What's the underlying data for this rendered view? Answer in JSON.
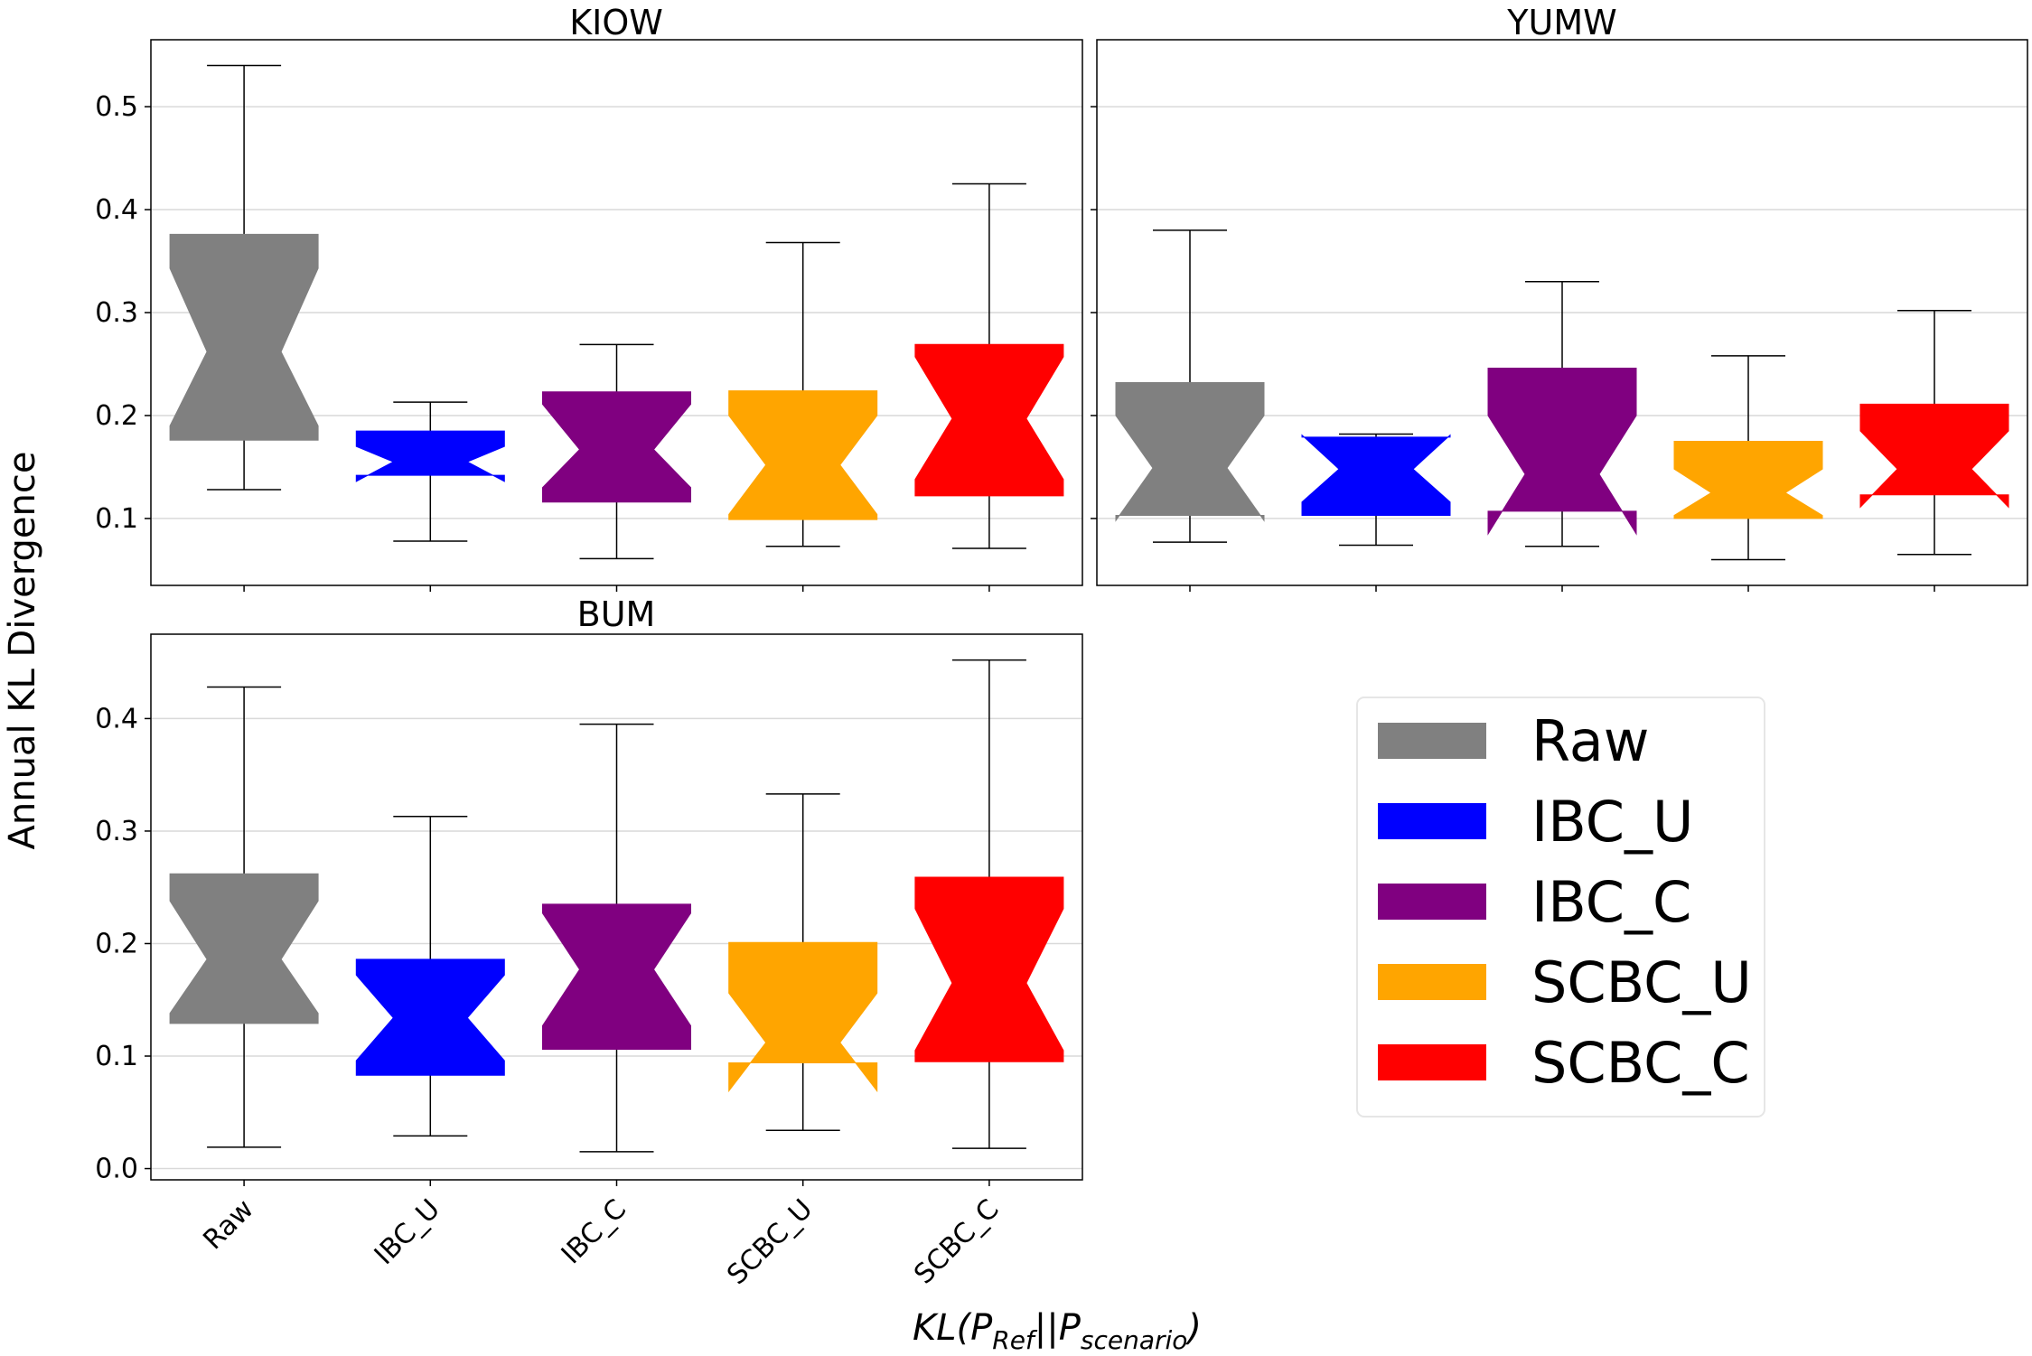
{
  "chart_data": {
    "type": "boxplot",
    "notched": true,
    "ylabel": "Annual KL Divergence",
    "xlabel_main": "KL(P",
    "xlabel_sub1": "Ref",
    "xlabel_mid": "||P",
    "xlabel_sub2": "scenario",
    "xlabel_end": ")",
    "categories": [
      "Raw",
      "IBC_U",
      "IBC_C",
      "SCBC_U",
      "SCBC_C"
    ],
    "colors": [
      "#808080",
      "#0000ff",
      "#800080",
      "#ffa500",
      "#ff0000"
    ],
    "legend": {
      "placement": "lower-right",
      "entries": [
        "Raw",
        "IBC_U",
        "IBC_C",
        "SCBC_U",
        "SCBC_C"
      ]
    },
    "grid": "y",
    "panels": [
      {
        "title": "KIOW",
        "ylim": [
          0.035,
          0.565
        ],
        "yticks": [
          0.1,
          0.2,
          0.3,
          0.4,
          0.5
        ],
        "ytick_labels": [
          "0.1",
          "0.2",
          "0.3",
          "0.4",
          "0.5"
        ],
        "show_x_labels": false,
        "boxes": [
          {
            "whislo": 0.128,
            "q1": 0.176,
            "notch_lo": 0.19,
            "med": 0.262,
            "notch_hi": 0.343,
            "q3": 0.376,
            "whishi": 0.54
          },
          {
            "whislo": 0.078,
            "q1": 0.142,
            "notch_lo": 0.136,
            "med": 0.155,
            "notch_hi": 0.17,
            "q3": 0.185,
            "whishi": 0.213
          },
          {
            "whislo": 0.061,
            "q1": 0.116,
            "notch_lo": 0.13,
            "med": 0.167,
            "notch_hi": 0.211,
            "q3": 0.223,
            "whishi": 0.269
          },
          {
            "whislo": 0.073,
            "q1": 0.099,
            "notch_lo": 0.104,
            "med": 0.152,
            "notch_hi": 0.2,
            "q3": 0.224,
            "whishi": 0.368
          },
          {
            "whislo": 0.071,
            "q1": 0.122,
            "notch_lo": 0.138,
            "med": 0.197,
            "notch_hi": 0.257,
            "q3": 0.269,
            "whishi": 0.425
          }
        ]
      },
      {
        "title": "YUMW",
        "ylim": [
          0.035,
          0.565
        ],
        "yticks": [
          0.1,
          0.2,
          0.3,
          0.4,
          0.5
        ],
        "ytick_labels": [],
        "show_x_labels": false,
        "boxes": [
          {
            "whislo": 0.077,
            "q1": 0.103,
            "notch_lo": 0.098,
            "med": 0.149,
            "notch_hi": 0.2,
            "q3": 0.232,
            "whishi": 0.38
          },
          {
            "whislo": 0.074,
            "q1": 0.103,
            "notch_lo": 0.116,
            "med": 0.148,
            "notch_hi": 0.181,
            "q3": 0.179,
            "whishi": 0.182
          },
          {
            "whislo": 0.073,
            "q1": 0.107,
            "notch_lo": 0.085,
            "med": 0.143,
            "notch_hi": 0.2,
            "q3": 0.246,
            "whishi": 0.33
          },
          {
            "whislo": 0.06,
            "q1": 0.1,
            "notch_lo": 0.103,
            "med": 0.125,
            "notch_hi": 0.148,
            "q3": 0.175,
            "whishi": 0.258
          },
          {
            "whislo": 0.065,
            "q1": 0.123,
            "notch_lo": 0.111,
            "med": 0.148,
            "notch_hi": 0.185,
            "q3": 0.211,
            "whishi": 0.302
          }
        ]
      },
      {
        "title": "BUM",
        "ylim": [
          -0.01,
          0.475
        ],
        "yticks": [
          0.0,
          0.1,
          0.2,
          0.3,
          0.4
        ],
        "ytick_labels": [
          "0.0",
          "0.1",
          "0.2",
          "0.3",
          "0.4"
        ],
        "show_x_labels": true,
        "boxes": [
          {
            "whislo": 0.019,
            "q1": 0.129,
            "notch_lo": 0.138,
            "med": 0.186,
            "notch_hi": 0.238,
            "q3": 0.262,
            "whishi": 0.428
          },
          {
            "whislo": 0.029,
            "q1": 0.083,
            "notch_lo": 0.096,
            "med": 0.134,
            "notch_hi": 0.172,
            "q3": 0.186,
            "whishi": 0.313
          },
          {
            "whislo": 0.015,
            "q1": 0.106,
            "notch_lo": 0.127,
            "med": 0.177,
            "notch_hi": 0.227,
            "q3": 0.235,
            "whishi": 0.395
          },
          {
            "whislo": 0.034,
            "q1": 0.094,
            "notch_lo": 0.069,
            "med": 0.112,
            "notch_hi": 0.156,
            "q3": 0.201,
            "whishi": 0.333
          },
          {
            "whislo": 0.018,
            "q1": 0.095,
            "notch_lo": 0.105,
            "med": 0.165,
            "notch_hi": 0.231,
            "q3": 0.259,
            "whishi": 0.452
          }
        ]
      }
    ]
  }
}
